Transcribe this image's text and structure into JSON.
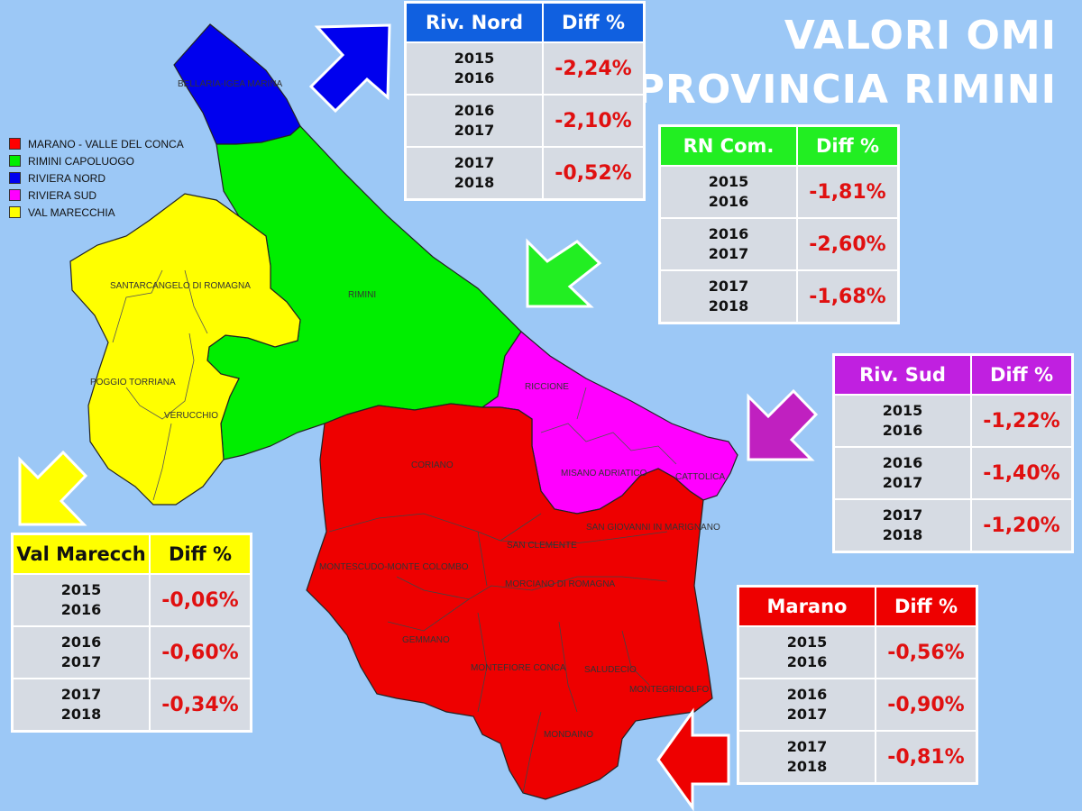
{
  "title_line1": "VALORI OMI",
  "title_line2": "PROVINCIA RIMINI",
  "legend": [
    {
      "label": "MARANO - VALLE DEL CONCA",
      "color": "#ff0000"
    },
    {
      "label": "RIMINI CAPOLUOGO",
      "color": "#00ee00"
    },
    {
      "label": "RIVIERA NORD",
      "color": "#0000ee"
    },
    {
      "label": "RIVIERA SUD",
      "color": "#ff00ff"
    },
    {
      "label": "VAL MARECCHIA",
      "color": "#ffff00"
    }
  ],
  "map_labels": {
    "bellaria": "BELLARIA-IGEA MARINA",
    "rimini": "RIMINI",
    "santarcangelo": "SANTARCANGELO DI ROMAGNA",
    "poggio": "POGGIO TORRIANA",
    "verucchio": "VERUCCHIO",
    "riccione": "RICCIONE",
    "misano": "MISANO ADRIATICO",
    "cattolica": "CATTOLICA",
    "coriano": "CORIANO",
    "sangiovanni": "SAN GIOVANNI IN MARIGNANO",
    "sanclemente": "SAN CLEMENTE",
    "montescudo": "MONTESCUDO-MONTE COLOMBO",
    "morciano": "MORCIANO DI ROMAGNA",
    "gemmano": "GEMMANO",
    "montefiore": "MONTEFIORE CONCA",
    "saludecio": "SALUDECIO",
    "montegridolfo": "MONTEGRIDOLFO",
    "mondaino": "MONDAINO"
  },
  "tables": {
    "riv_nord": {
      "header": "Riv. Nord",
      "diff": "Diff %",
      "header_bg": "#1060e0",
      "header_color": "#ffffff",
      "rows": [
        {
          "y1": "2015",
          "y2": "2016",
          "v": "-2,24%"
        },
        {
          "y1": "2016",
          "y2": "2017",
          "v": "-2,10%"
        },
        {
          "y1": "2017",
          "y2": "2018",
          "v": "-0,52%"
        }
      ]
    },
    "rn_com": {
      "header": "RN Com.",
      "diff": "Diff %",
      "header_bg": "#22ee22",
      "header_color": "#ffffff",
      "rows": [
        {
          "y1": "2015",
          "y2": "2016",
          "v": "-1,81%"
        },
        {
          "y1": "2016",
          "y2": "2017",
          "v": "-2,60%"
        },
        {
          "y1": "2017",
          "y2": "2018",
          "v": "-1,68%"
        }
      ]
    },
    "riv_sud": {
      "header": "Riv. Sud",
      "diff": "Diff %",
      "header_bg": "#c020e0",
      "header_color": "#ffffff",
      "rows": [
        {
          "y1": "2015",
          "y2": "2016",
          "v": "-1,22%"
        },
        {
          "y1": "2016",
          "y2": "2017",
          "v": "-1,40%"
        },
        {
          "y1": "2017",
          "y2": "2018",
          "v": "-1,20%"
        }
      ]
    },
    "val_marecch": {
      "header": "Val Marecch",
      "diff": "Diff %",
      "header_bg": "#ffff00",
      "header_color": "#111111",
      "rows": [
        {
          "y1": "2015",
          "y2": "2016",
          "v": "-0,06%"
        },
        {
          "y1": "2016",
          "y2": "2017",
          "v": "-0,60%"
        },
        {
          "y1": "2017",
          "y2": "2018",
          "v": "-0,34%"
        }
      ]
    },
    "marano": {
      "header": "Marano",
      "diff": "Diff %",
      "header_bg": "#ee0000",
      "header_color": "#ffffff",
      "rows": [
        {
          "y1": "2015",
          "y2": "2016",
          "v": "-0,56%"
        },
        {
          "y1": "2016",
          "y2": "2017",
          "v": "-0,90%"
        },
        {
          "y1": "2017",
          "y2": "2018",
          "v": "-0,81%"
        }
      ]
    }
  },
  "colors": {
    "sea": "#9cc8f6",
    "marano": "#ff0000",
    "rimini": "#00ee00",
    "riviera_nord": "#0000ee",
    "riviera_sud": "#ff00ff",
    "val_marecchia": "#ffff00"
  }
}
